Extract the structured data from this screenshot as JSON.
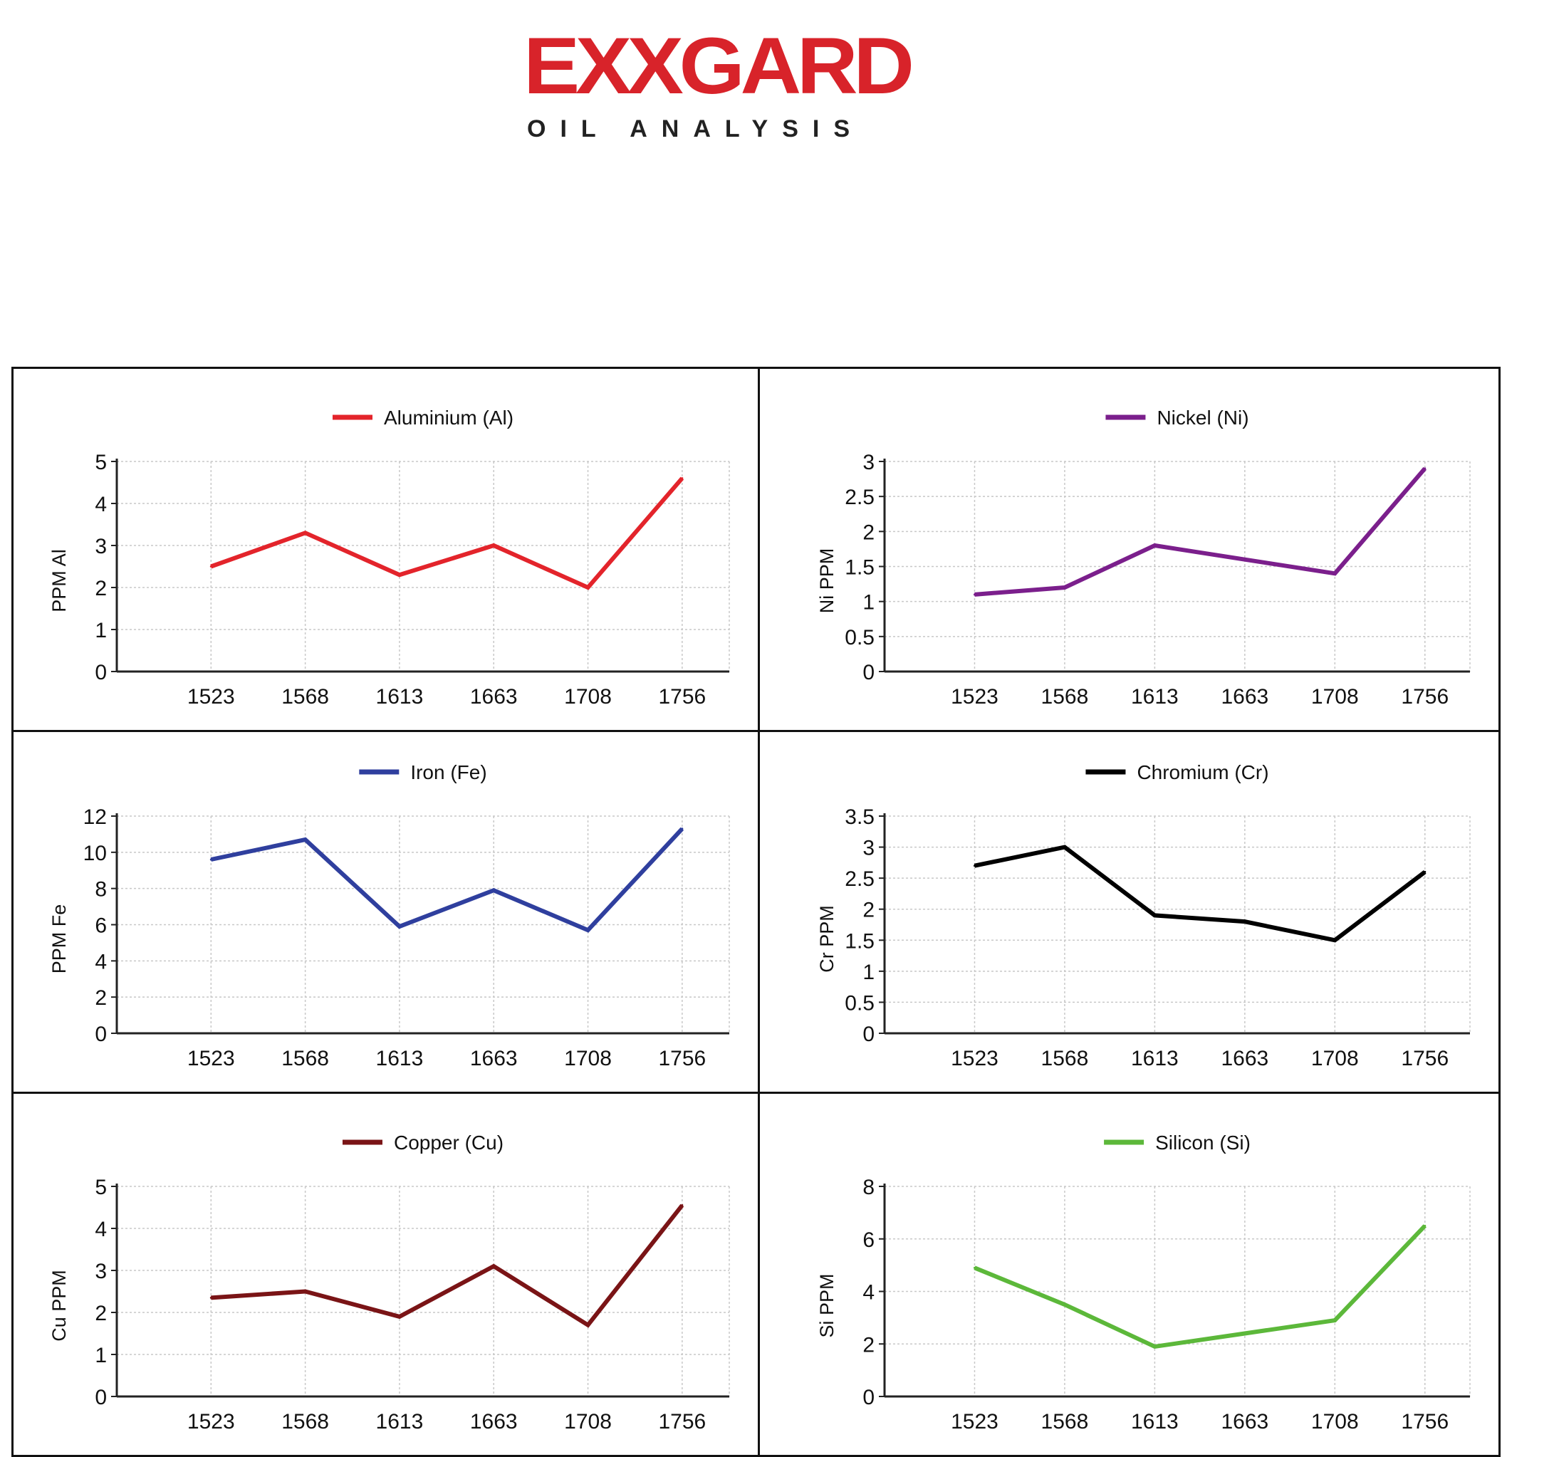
{
  "logo": {
    "word": "EXXGARD",
    "sub": "OIL ANALYSIS",
    "color": "#d8232a"
  },
  "chart_data": [
    {
      "type": "line",
      "legend": "Aluminium (Al)",
      "ylabel": "PPM Al",
      "color": "#e3242b",
      "categories": [
        "1523",
        "1568",
        "1613",
        "1663",
        "1708",
        "1756"
      ],
      "values": [
        2.5,
        3.3,
        2.3,
        3.0,
        2.0,
        4.6
      ],
      "yticks": [
        "0",
        "1",
        "2",
        "3",
        "4",
        "5"
      ],
      "ylim": [
        0,
        5
      ],
      "grid": true,
      "legend_position": "top-center"
    },
    {
      "type": "line",
      "legend": "Nickel (Ni)",
      "ylabel": "Ni PPM",
      "color": "#7b1f8c",
      "categories": [
        "1523",
        "1568",
        "1613",
        "1663",
        "1708",
        "1756"
      ],
      "values": [
        1.1,
        1.2,
        1.8,
        1.6,
        1.4,
        2.9
      ],
      "yticks": [
        "0",
        "0.5",
        "1",
        "1.5",
        "2",
        "2.5",
        "3"
      ],
      "ylim": [
        0,
        3
      ],
      "grid": true,
      "legend_position": "top-center"
    },
    {
      "type": "line",
      "legend": "Iron (Fe)",
      "ylabel": "PPM Fe",
      "color": "#2f3f9e",
      "categories": [
        "1523",
        "1568",
        "1613",
        "1663",
        "1708",
        "1756"
      ],
      "values": [
        9.6,
        10.7,
        5.9,
        7.9,
        5.7,
        11.3
      ],
      "yticks": [
        "0",
        "2",
        "4",
        "6",
        "8",
        "10",
        "12"
      ],
      "ylim": [
        0,
        12
      ],
      "grid": true,
      "legend_position": "top-center"
    },
    {
      "type": "line",
      "legend": "Chromium (Cr)",
      "ylabel": "Cr PPM",
      "color": "#000000",
      "categories": [
        "1523",
        "1568",
        "1613",
        "1663",
        "1708",
        "1756"
      ],
      "values": [
        2.7,
        3.0,
        1.9,
        1.8,
        1.5,
        2.6
      ],
      "yticks": [
        "0",
        "0.5",
        "1",
        "1.5",
        "2",
        "2.5",
        "3",
        "3.5"
      ],
      "ylim": [
        0,
        3.5
      ],
      "grid": true,
      "legend_position": "top-center"
    },
    {
      "type": "line",
      "legend": "Copper (Cu)",
      "ylabel": "Cu PPM",
      "color": "#7a1416",
      "categories": [
        "1523",
        "1568",
        "1613",
        "1663",
        "1708",
        "1756"
      ],
      "values": [
        2.35,
        2.5,
        1.9,
        3.1,
        1.7,
        4.55
      ],
      "yticks": [
        "0",
        "1",
        "2",
        "3",
        "4",
        "5"
      ],
      "ylim": [
        0,
        5
      ],
      "grid": true,
      "legend_position": "top-center"
    },
    {
      "type": "line",
      "legend": "Silicon (Si)",
      "ylabel": "Si PPM",
      "color": "#5cb83a",
      "categories": [
        "1523",
        "1568",
        "1613",
        "1663",
        "1708",
        "1756"
      ],
      "values": [
        4.9,
        3.5,
        1.9,
        2.4,
        2.9,
        6.5
      ],
      "yticks": [
        "0",
        "2",
        "4",
        "6",
        "8"
      ],
      "ylim": [
        0,
        8
      ],
      "grid": true,
      "legend_position": "top-center"
    }
  ]
}
